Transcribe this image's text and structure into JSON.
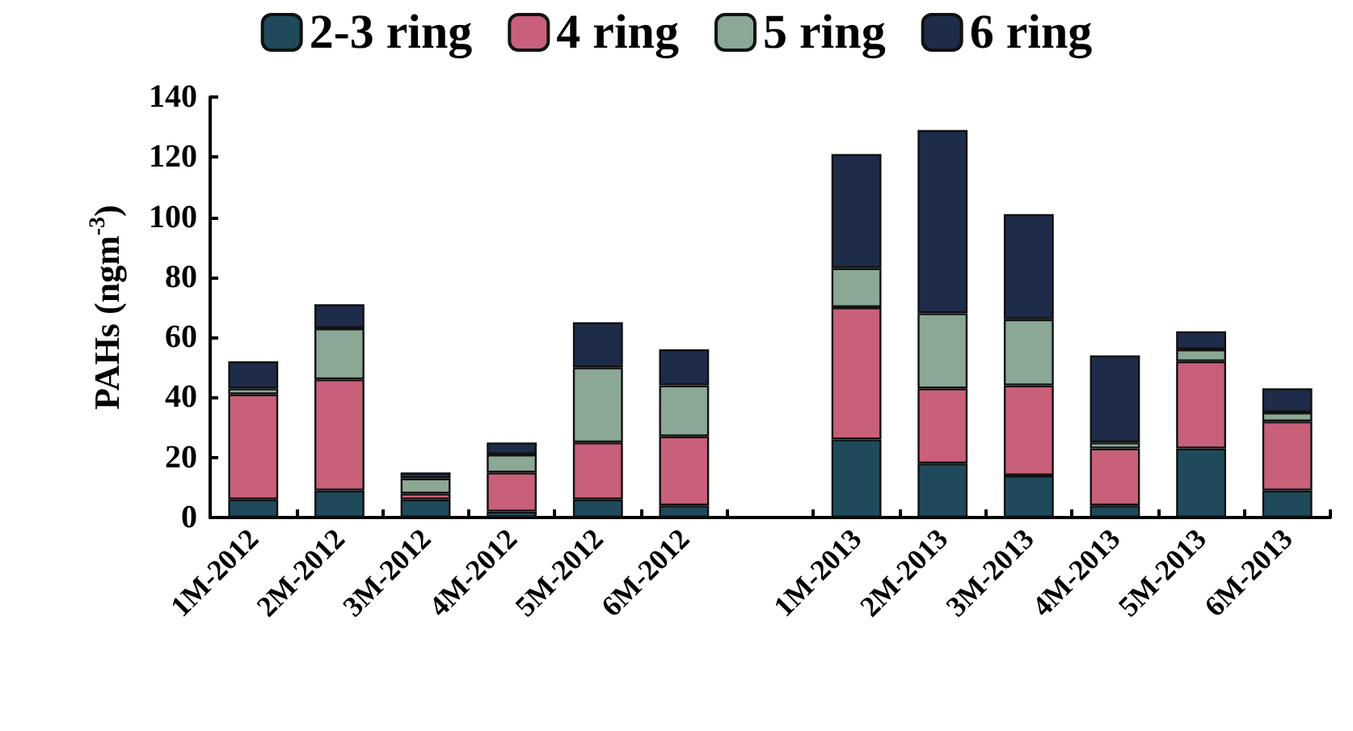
{
  "chart_data": {
    "type": "bar",
    "stacked": true,
    "ylabel": "PAHs (ngm$^{-3}$)",
    "categories": [
      "1M-2012",
      "2M-2012",
      "3M-2012",
      "4M-2012",
      "5M-2012",
      "6M-2012",
      null,
      "1M-2013",
      "2M-2013",
      "3M-2013",
      "4M-2013",
      "5M-2013",
      "6M-2013"
    ],
    "series": [
      {
        "name": "2-3 ring",
        "color": "#1e4a5c",
        "values": [
          6,
          9,
          6,
          2,
          6,
          4,
          null,
          26,
          18,
          14,
          4,
          23,
          9
        ]
      },
      {
        "name": "4 ring",
        "color": "#c8607a",
        "values": [
          35,
          37,
          2,
          13,
          19,
          23,
          null,
          44,
          25,
          30,
          19,
          29,
          23
        ]
      },
      {
        "name": "5 ring",
        "color": "#8aa894",
        "values": [
          2,
          17,
          5,
          6,
          25,
          17,
          null,
          13,
          25,
          22,
          2,
          4,
          3
        ]
      },
      {
        "name": "6 ring",
        "color": "#1e2c4a",
        "values": [
          9,
          8,
          2,
          4,
          15,
          12,
          null,
          38,
          61,
          35,
          29,
          6,
          8
        ]
      }
    ],
    "ylim": [
      0,
      140
    ],
    "yticks": [
      0,
      20,
      40,
      60,
      80,
      100,
      120,
      140
    ],
    "grid": false,
    "legend": "top"
  }
}
